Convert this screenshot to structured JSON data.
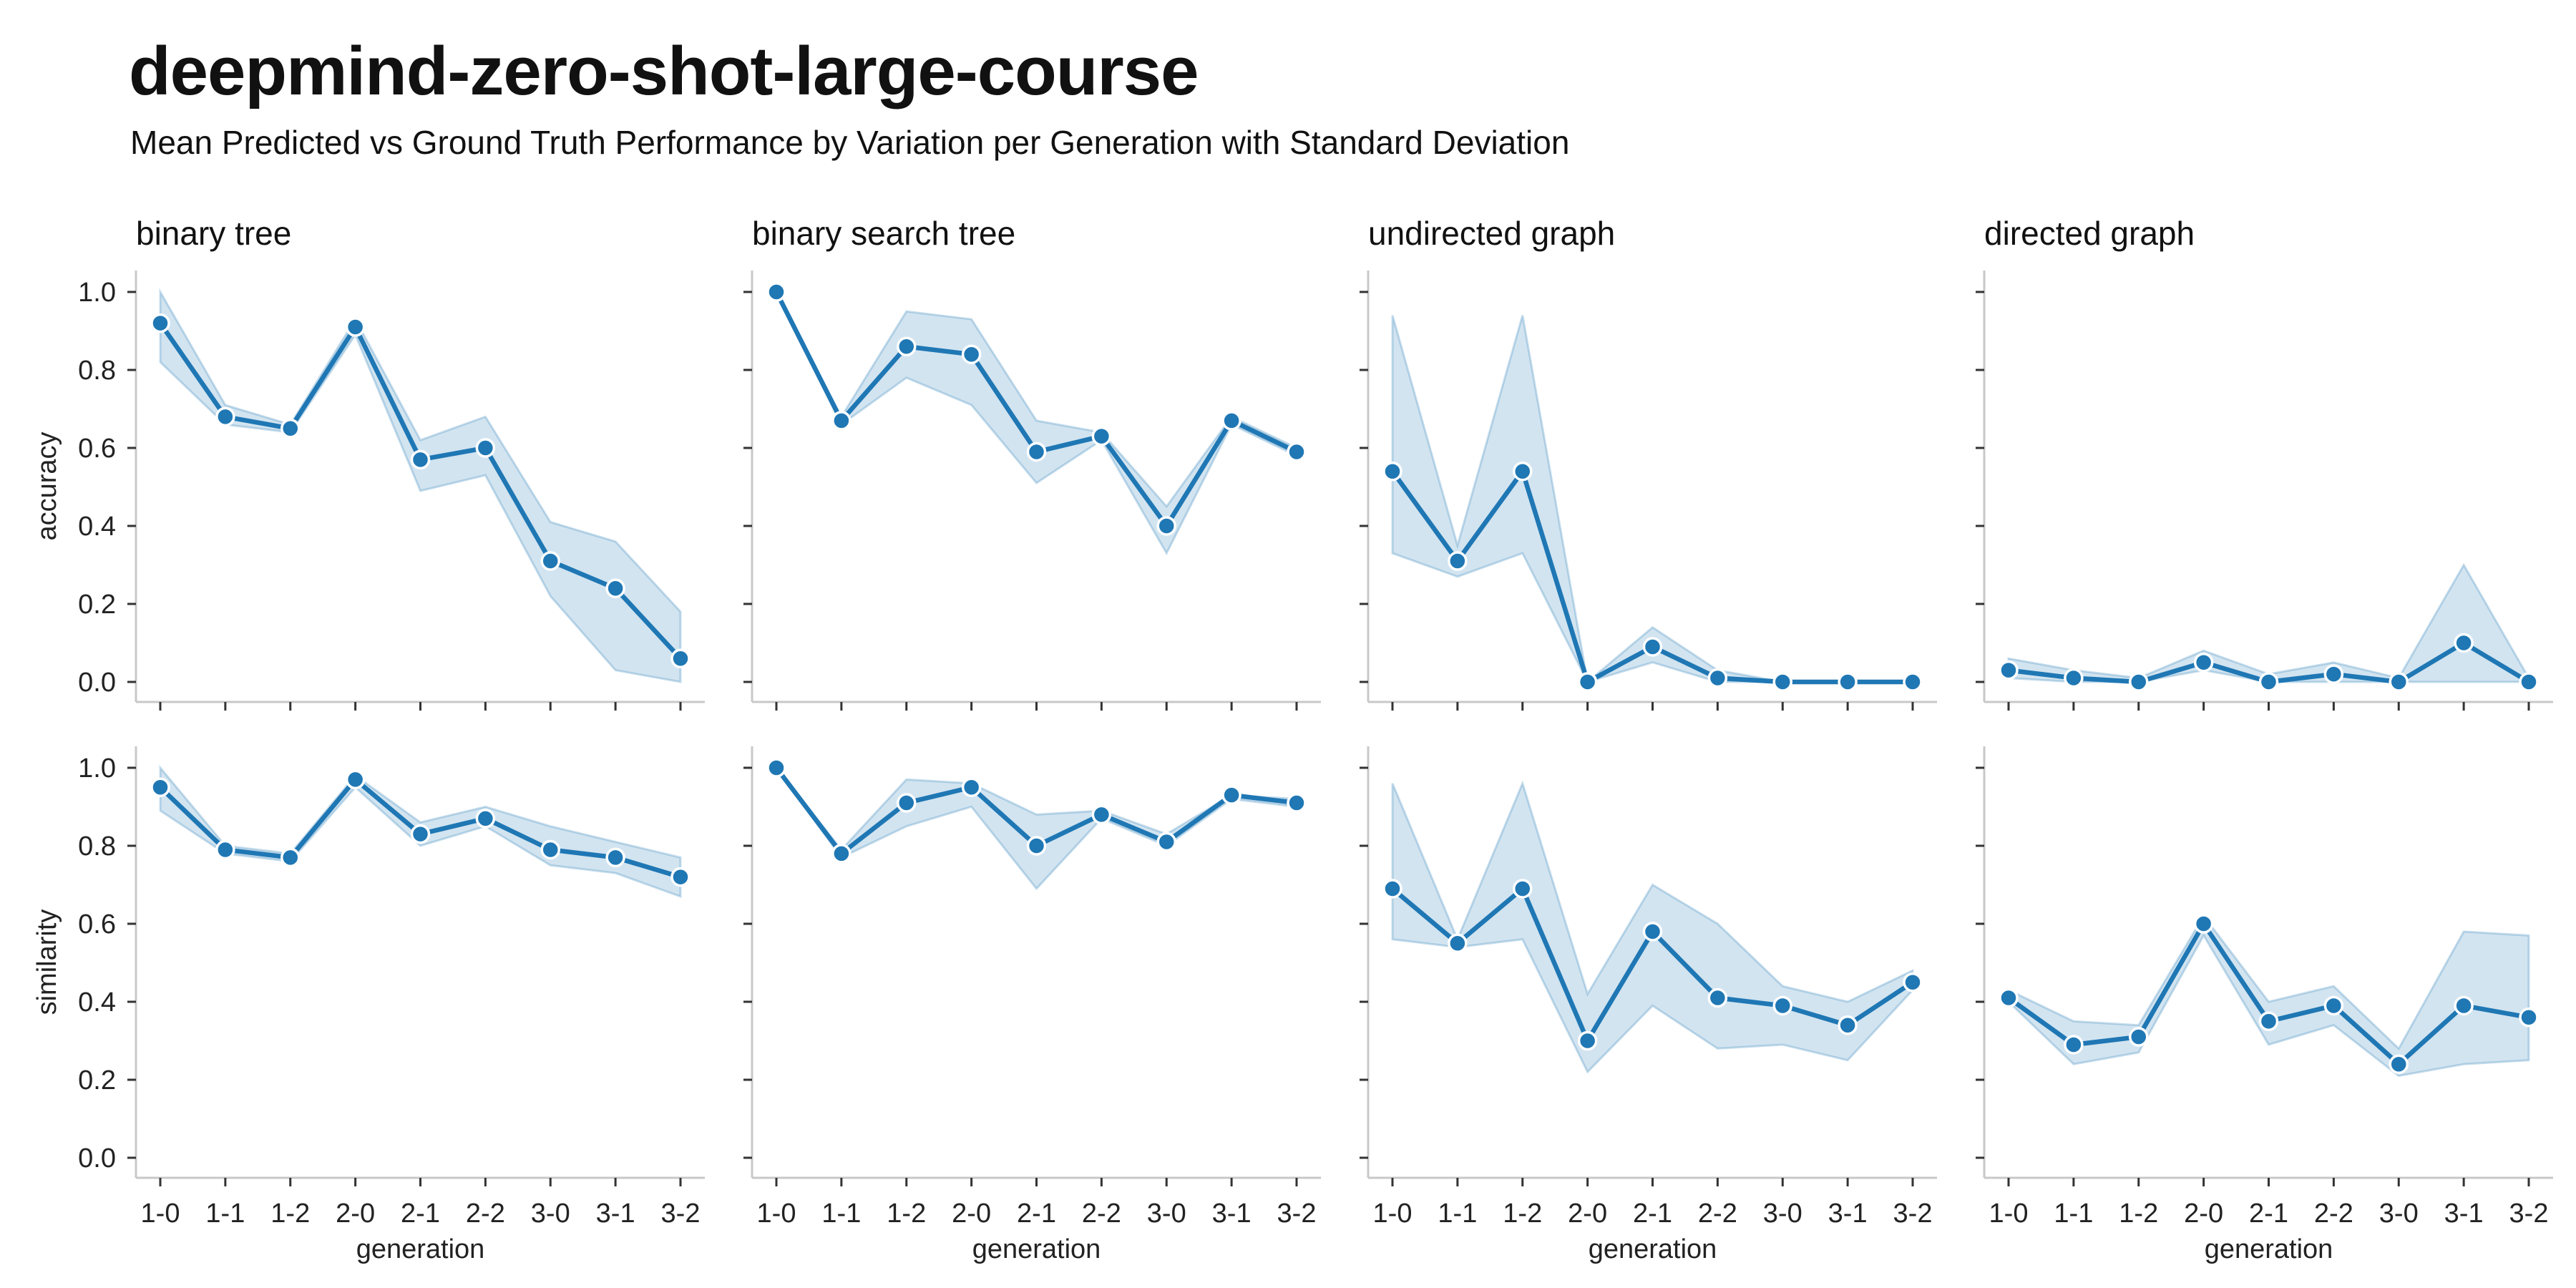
{
  "title": "deepmind-zero-shot-large-course",
  "subtitle": "Mean Predicted vs Ground Truth Performance by Variation per Generation with Standard Deviation",
  "chart_data": {
    "type": "line",
    "layout": "facet-grid",
    "x": [
      "1-0",
      "1-1",
      "1-2",
      "2-0",
      "2-1",
      "2-2",
      "3-0",
      "3-1",
      "3-2"
    ],
    "xlabel": "generation",
    "ylim": [
      0,
      1
    ],
    "yticks": [
      0.0,
      0.2,
      0.4,
      0.6,
      0.8,
      1.0
    ],
    "ytick_labels": [
      "0.0",
      "0.2",
      "0.4",
      "0.6",
      "0.8",
      "1.0"
    ],
    "grid": false,
    "line_color": "#1f77b4",
    "band_color": "#1f77b4",
    "columns": [
      "binary tree",
      "binary search tree",
      "undirected graph",
      "directed graph"
    ],
    "rows": [
      {
        "metric": "accuracy",
        "panels": [
          {
            "mean": [
              0.92,
              0.68,
              0.65,
              0.91,
              0.57,
              0.6,
              0.31,
              0.24,
              0.06
            ],
            "lower": [
              0.82,
              0.66,
              0.64,
              0.89,
              0.49,
              0.53,
              0.22,
              0.03,
              0.0
            ],
            "upper": [
              1.0,
              0.71,
              0.66,
              0.93,
              0.62,
              0.68,
              0.41,
              0.36,
              0.18
            ]
          },
          {
            "mean": [
              1.0,
              0.67,
              0.86,
              0.84,
              0.59,
              0.63,
              0.4,
              0.67,
              0.59
            ],
            "lower": [
              1.0,
              0.66,
              0.78,
              0.71,
              0.51,
              0.62,
              0.33,
              0.66,
              0.58
            ],
            "upper": [
              1.0,
              0.68,
              0.95,
              0.93,
              0.67,
              0.64,
              0.45,
              0.68,
              0.6
            ]
          },
          {
            "mean": [
              0.54,
              0.31,
              0.54,
              0.0,
              0.09,
              0.01,
              0.0,
              0.0,
              0.0
            ],
            "lower": [
              0.33,
              0.27,
              0.33,
              0.0,
              0.05,
              0.0,
              0.0,
              0.0,
              0.0
            ],
            "upper": [
              0.94,
              0.35,
              0.94,
              0.0,
              0.14,
              0.03,
              0.0,
              0.0,
              0.0
            ]
          },
          {
            "mean": [
              0.03,
              0.01,
              0.0,
              0.05,
              0.0,
              0.02,
              0.0,
              0.1,
              0.0
            ],
            "lower": [
              0.01,
              0.0,
              0.0,
              0.03,
              0.0,
              0.0,
              0.0,
              0.0,
              0.0
            ],
            "upper": [
              0.06,
              0.03,
              0.01,
              0.08,
              0.02,
              0.05,
              0.01,
              0.3,
              0.01
            ]
          }
        ]
      },
      {
        "metric": "similarity",
        "panels": [
          {
            "mean": [
              0.95,
              0.79,
              0.77,
              0.97,
              0.83,
              0.87,
              0.79,
              0.77,
              0.72
            ],
            "lower": [
              0.89,
              0.78,
              0.76,
              0.95,
              0.8,
              0.85,
              0.75,
              0.73,
              0.67
            ],
            "upper": [
              1.0,
              0.8,
              0.78,
              0.98,
              0.86,
              0.9,
              0.85,
              0.81,
              0.77
            ]
          },
          {
            "mean": [
              1.0,
              0.78,
              0.91,
              0.95,
              0.8,
              0.88,
              0.81,
              0.93,
              0.91
            ],
            "lower": [
              1.0,
              0.77,
              0.85,
              0.9,
              0.69,
              0.87,
              0.8,
              0.92,
              0.9
            ],
            "upper": [
              1.0,
              0.79,
              0.97,
              0.96,
              0.88,
              0.89,
              0.83,
              0.93,
              0.92
            ]
          },
          {
            "mean": [
              0.69,
              0.55,
              0.69,
              0.3,
              0.58,
              0.41,
              0.39,
              0.34,
              0.45
            ],
            "lower": [
              0.56,
              0.54,
              0.56,
              0.22,
              0.39,
              0.28,
              0.29,
              0.25,
              0.43
            ],
            "upper": [
              0.96,
              0.56,
              0.96,
              0.42,
              0.7,
              0.6,
              0.44,
              0.4,
              0.48
            ]
          },
          {
            "mean": [
              0.41,
              0.29,
              0.31,
              0.6,
              0.35,
              0.39,
              0.24,
              0.39,
              0.36
            ],
            "lower": [
              0.4,
              0.24,
              0.27,
              0.57,
              0.29,
              0.34,
              0.21,
              0.24,
              0.25
            ],
            "upper": [
              0.43,
              0.35,
              0.34,
              0.62,
              0.4,
              0.44,
              0.28,
              0.58,
              0.57
            ]
          }
        ]
      }
    ]
  }
}
